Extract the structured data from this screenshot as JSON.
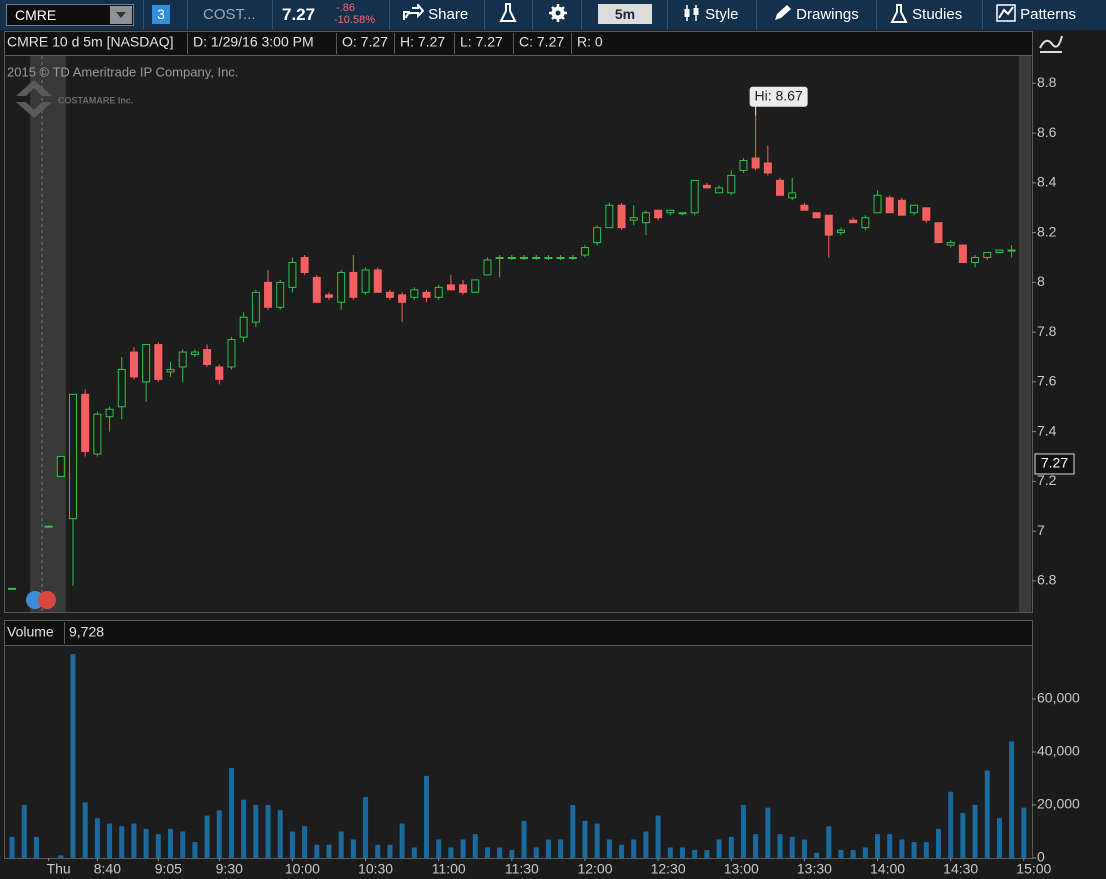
{
  "toolbar": {
    "symbol": "CMRE",
    "link_badge": "3",
    "description": "COST...",
    "last": "7.27",
    "change": "-.86",
    "change_pct": "-10.58%",
    "share": "Share",
    "interval": "5m",
    "style": "Style",
    "drawings": "Drawings",
    "studies": "Studies",
    "patterns": "Patterns"
  },
  "chart_data": [
    {
      "type": "candlestick",
      "title": "CMRE 10 d 5m [NASDAQ]",
      "info": [
        "D: 1/29/16 3:00 PM",
        "O: 7.27",
        "H: 7.27",
        "L: 7.27",
        "C: 7.27",
        "R: 0"
      ],
      "watermark": "2015 © TD Ameritrade IP Company, Inc.",
      "logo": "COSTAMARE Inc.",
      "x": [
        "8:05",
        "8:10",
        "8:15",
        "8:20",
        "8:25",
        "8:30",
        "8:35",
        "8:40",
        "8:45",
        "8:50",
        "8:55",
        "9:00",
        "9:05",
        "9:10",
        "9:15",
        "9:20",
        "9:25",
        "9:30",
        "9:35",
        "9:40",
        "9:45",
        "9:50",
        "9:55",
        "10:00",
        "10:05",
        "10:10",
        "10:15",
        "10:20",
        "10:25",
        "10:30",
        "10:35",
        "10:40",
        "10:45",
        "10:50",
        "10:55",
        "11:00",
        "11:05",
        "11:10",
        "11:15",
        "11:20",
        "11:25",
        "11:30",
        "11:35",
        "11:40",
        "11:45",
        "11:50",
        "11:55",
        "12:00",
        "12:05",
        "12:10",
        "12:15",
        "12:20",
        "12:25",
        "12:30",
        "12:35",
        "12:40",
        "12:45",
        "12:50",
        "12:55",
        "13:00",
        "13:05",
        "13:10",
        "13:15",
        "13:20",
        "13:25",
        "13:30",
        "13:35",
        "13:40",
        "13:45",
        "13:50",
        "13:55",
        "14:00",
        "14:05",
        "14:10",
        "14:15",
        "14:20",
        "14:25",
        "14:30",
        "14:35",
        "14:40",
        "14:45",
        "14:50",
        "14:55",
        "15:00"
      ],
      "open": [
        6.77,
        null,
        null,
        7.02,
        7.22,
        7.05,
        7.55,
        7.31,
        7.46,
        7.5,
        7.72,
        7.6,
        7.75,
        7.64,
        7.66,
        7.71,
        7.73,
        7.66,
        7.66,
        7.78,
        7.84,
        8.0,
        7.9,
        7.98,
        8.1,
        8.02,
        7.95,
        7.92,
        8.04,
        7.96,
        8.05,
        7.96,
        7.95,
        7.94,
        7.96,
        7.94,
        7.99,
        7.99,
        7.96,
        8.03,
        8.1,
        8.1,
        8.1,
        8.1,
        8.1,
        8.1,
        8.1,
        8.11,
        8.16,
        8.22,
        8.31,
        8.25,
        8.24,
        8.29,
        8.28,
        8.28,
        8.28,
        8.39,
        8.36,
        8.36,
        8.45,
        8.5,
        8.48,
        8.41,
        8.34,
        8.31,
        8.28,
        8.27,
        8.2,
        8.25,
        8.22,
        8.28,
        8.34,
        8.33,
        8.28,
        8.3,
        8.24,
        8.15,
        8.15,
        8.08,
        8.1,
        8.12,
        8.13,
        null
      ],
      "high": [
        6.77,
        null,
        null,
        7.02,
        7.3,
        7.55,
        7.57,
        7.48,
        7.5,
        7.7,
        7.74,
        7.75,
        7.76,
        7.68,
        7.73,
        7.73,
        7.75,
        7.67,
        7.78,
        7.88,
        7.97,
        8.05,
        8.01,
        8.1,
        8.11,
        8.03,
        7.96,
        8.05,
        8.11,
        8.06,
        8.06,
        7.97,
        7.96,
        7.98,
        7.97,
        7.99,
        8.03,
        8.01,
        8.01,
        8.1,
        8.11,
        8.11,
        8.11,
        8.11,
        8.11,
        8.11,
        8.11,
        8.15,
        8.23,
        8.32,
        8.32,
        8.31,
        8.29,
        8.29,
        8.29,
        8.28,
        8.41,
        8.4,
        8.39,
        8.45,
        8.5,
        8.67,
        8.55,
        8.42,
        8.42,
        8.32,
        8.28,
        8.27,
        8.22,
        8.26,
        8.27,
        8.37,
        8.35,
        8.34,
        8.31,
        8.3,
        8.24,
        8.17,
        8.15,
        8.11,
        8.12,
        8.13,
        8.15,
        null
      ],
      "low": [
        6.77,
        null,
        null,
        7.02,
        7.22,
        6.78,
        7.3,
        7.3,
        7.4,
        7.45,
        7.61,
        7.52,
        7.6,
        7.62,
        7.6,
        7.7,
        7.66,
        7.59,
        7.65,
        7.76,
        7.82,
        7.89,
        7.89,
        7.96,
        8.03,
        7.92,
        7.93,
        7.89,
        7.93,
        7.95,
        7.96,
        7.93,
        7.84,
        7.93,
        7.92,
        7.93,
        7.97,
        7.95,
        7.96,
        8.03,
        8.02,
        8.09,
        8.09,
        8.09,
        8.09,
        8.09,
        8.09,
        8.1,
        8.15,
        8.22,
        8.21,
        8.23,
        8.19,
        8.25,
        8.27,
        8.27,
        8.27,
        8.38,
        8.36,
        8.35,
        8.44,
        8.45,
        8.43,
        8.35,
        8.33,
        8.29,
        8.26,
        8.1,
        8.19,
        8.24,
        8.21,
        8.28,
        8.28,
        8.27,
        8.27,
        8.24,
        8.16,
        8.14,
        8.08,
        8.06,
        8.09,
        8.12,
        8.1,
        null
      ],
      "close": [
        6.77,
        null,
        null,
        7.02,
        7.3,
        7.55,
        7.32,
        7.47,
        7.49,
        7.65,
        7.62,
        7.75,
        7.61,
        7.65,
        7.72,
        7.72,
        7.67,
        7.61,
        7.77,
        7.86,
        7.96,
        7.9,
        8.0,
        8.08,
        8.04,
        7.92,
        7.94,
        8.04,
        7.94,
        8.05,
        7.96,
        7.94,
        7.92,
        7.97,
        7.94,
        7.98,
        7.97,
        7.96,
        8.01,
        8.09,
        8.1,
        8.1,
        8.1,
        8.1,
        8.1,
        8.1,
        8.1,
        8.14,
        8.22,
        8.31,
        8.22,
        8.26,
        8.28,
        8.26,
        8.29,
        8.28,
        8.41,
        8.38,
        8.38,
        8.43,
        8.49,
        8.46,
        8.44,
        8.35,
        8.36,
        8.29,
        8.26,
        8.19,
        8.21,
        8.24,
        8.26,
        8.35,
        8.28,
        8.27,
        8.31,
        8.25,
        8.16,
        8.16,
        8.08,
        8.1,
        8.12,
        8.13,
        8.13,
        null
      ],
      "up_color": "#2fc24a",
      "down_color": "#f4605f",
      "ylim": [
        6.675,
        8.91
      ],
      "yticks": [
        6.8,
        7,
        7.2,
        7.4,
        7.6,
        7.8,
        8,
        8.2,
        8.4,
        8.6,
        8.8
      ],
      "annotations": [
        {
          "x": "13:10",
          "y": 8.67,
          "label": "Hi: 8.67"
        }
      ],
      "last_price": {
        "value": 7.27,
        "label": "7.27"
      }
    },
    {
      "type": "bar",
      "title": "Volume",
      "current": "9,728",
      "x": [
        "8:05",
        "8:10",
        "8:15",
        "8:20",
        "8:25",
        "8:30",
        "8:35",
        "8:40",
        "8:45",
        "8:50",
        "8:55",
        "9:00",
        "9:05",
        "9:10",
        "9:15",
        "9:20",
        "9:25",
        "9:30",
        "9:35",
        "9:40",
        "9:45",
        "9:50",
        "9:55",
        "10:00",
        "10:05",
        "10:10",
        "10:15",
        "10:20",
        "10:25",
        "10:30",
        "10:35",
        "10:40",
        "10:45",
        "10:50",
        "10:55",
        "11:00",
        "11:05",
        "11:10",
        "11:15",
        "11:20",
        "11:25",
        "11:30",
        "11:35",
        "11:40",
        "11:45",
        "11:50",
        "11:55",
        "12:00",
        "12:05",
        "12:10",
        "12:15",
        "12:20",
        "12:25",
        "12:30",
        "12:35",
        "12:40",
        "12:45",
        "12:50",
        "12:55",
        "13:00",
        "13:05",
        "13:10",
        "13:15",
        "13:20",
        "13:25",
        "13:30",
        "13:35",
        "13:40",
        "13:45",
        "13:50",
        "13:55",
        "14:00",
        "14:05",
        "14:10",
        "14:15",
        "14:20",
        "14:25",
        "14:30",
        "14:35",
        "14:40",
        "14:45",
        "14:50",
        "14:55",
        "15:00"
      ],
      "values": [
        8000,
        20000,
        8000,
        null,
        1000,
        77000,
        21000,
        15000,
        13000,
        12000,
        13000,
        11000,
        9000,
        11000,
        10000,
        6000,
        16000,
        18000,
        34000,
        22000,
        20000,
        20000,
        18000,
        10000,
        12000,
        5000,
        5000,
        10000,
        7000,
        23000,
        5000,
        5000,
        13000,
        4000,
        31000,
        7000,
        4000,
        7000,
        9000,
        4000,
        4000,
        3000,
        14000,
        4000,
        7000,
        7000,
        20000,
        14000,
        13000,
        7000,
        5000,
        7000,
        10000,
        16000,
        4000,
        4000,
        3000,
        3000,
        7000,
        8000,
        20000,
        9000,
        19000,
        9000,
        8000,
        7000,
        2000,
        12000,
        3000,
        3000,
        4000,
        9000,
        9000,
        7000,
        6000,
        6000,
        11000,
        25000,
        17000,
        20000,
        33000,
        15000,
        44000,
        19000
      ],
      "color": "#1b6a9e",
      "ylim": [
        0,
        80000
      ],
      "yticks": [
        0,
        {
          "value": 20000,
          "label": "20,000"
        },
        {
          "value": 40000,
          "label": "40,000"
        },
        {
          "value": 60000,
          "label": "60,000"
        }
      ],
      "xticks": [
        {
          "value": "8:20",
          "label": "Thu"
        },
        "8:40",
        "9:05",
        "9:30",
        "10:00",
        "10:30",
        "11:00",
        "11:30",
        "12:00",
        "12:30",
        "13:00",
        "13:30",
        "14:00",
        "14:30",
        "15:00"
      ]
    }
  ]
}
